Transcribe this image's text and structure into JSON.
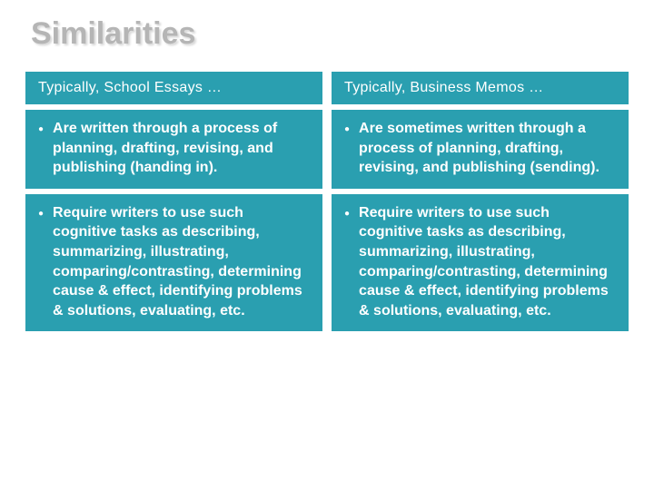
{
  "slide": {
    "title": "Similarities",
    "title_color": "#b5b5b5",
    "title_fontsize": 34,
    "background_color": "#ffffff",
    "box_color": "#2a9fb0",
    "box_text_color": "#ffffff",
    "header_font": "Verdana",
    "body_font": "Trebuchet MS",
    "header_fontsize": 16,
    "body_fontsize": 16,
    "columns": [
      {
        "header": "Typically, School Essays …",
        "items": [
          "Are written through a process of planning, drafting, revising, and publishing (handing in).",
          "Require writers to use such cognitive tasks as describing, summarizing, illustrating, comparing/contrasting, determining cause & effect, identifying problems & solutions, evaluating, etc."
        ]
      },
      {
        "header": "Typically, Business Memos …",
        "items": [
          "Are sometimes written through a process of planning, drafting, revising, and publishing (sending).",
          "Require writers to use such cognitive tasks as describing, summarizing, illustrating, comparing/contrasting, determining cause & effect, identifying problems & solutions, evaluating, etc."
        ]
      }
    ]
  }
}
